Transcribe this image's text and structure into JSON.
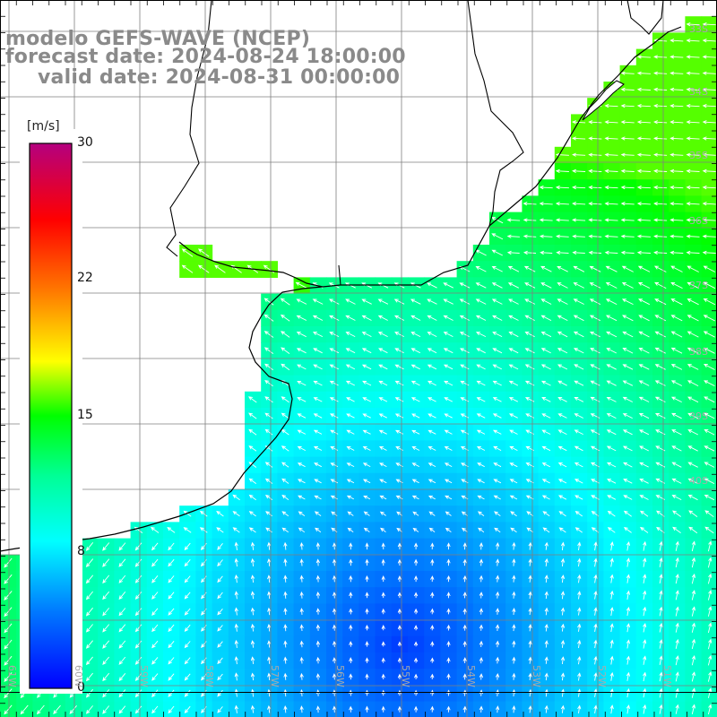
{
  "title": {
    "line1": "modelo GEFS-WAVE (NCEP)",
    "line2": "forecast date: 2024-08-24 18:00:00",
    "line3": "valid date: 2024-08-31 00:00:00"
  },
  "colorbar": {
    "unit": "[m/s]",
    "ticks": [
      "30",
      "22",
      "15",
      "8",
      "0"
    ]
  },
  "lat_labels": [
    "33S",
    "34S",
    "35S",
    "36S",
    "37S",
    "38S",
    "39S",
    "40S"
  ],
  "lon_labels": [
    "61W",
    "60W",
    "59W",
    "58W",
    "57W",
    "56W",
    "55W",
    "54W",
    "53W",
    "52W",
    "51W"
  ],
  "colors": {
    "background_land": "#ffffff",
    "coast": "#000000",
    "grid": "#7f7f7f",
    "arrow": "#ffffff",
    "title_text": "#8a8a8a",
    "scale_low": "#0000ff",
    "scale_mid": "#00ffff",
    "scale_high": "#ff0000",
    "scale_top": "#b4007f"
  },
  "icons": [
    "wind-arrow-icon"
  ]
}
